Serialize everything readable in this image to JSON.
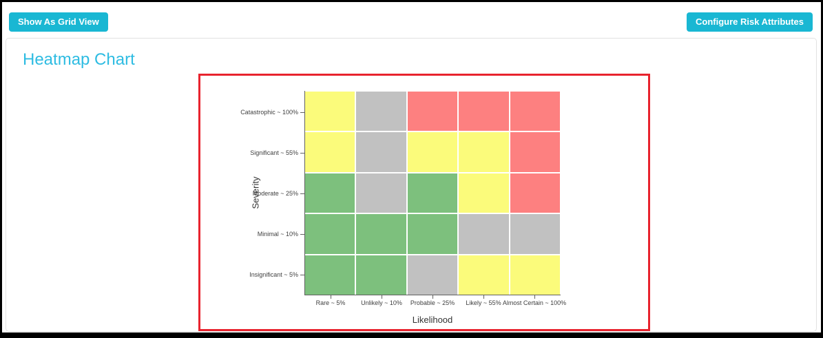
{
  "toolbar": {
    "grid_view_label": "Show As Grid View",
    "configure_label": "Configure Risk Attributes"
  },
  "panel": {
    "title": "Heatmap Chart"
  },
  "colors": {
    "accent_cyan": "#19b7d3",
    "title_cyan": "#2ebce2",
    "chart_frame_red": "#e8232e",
    "cell_green": "#7dc07d",
    "cell_yellow": "#fbfb7b",
    "cell_red": "#fd8080",
    "cell_gray": "#c1c1c1"
  },
  "chart_data": {
    "type": "heatmap",
    "x_axis_label": "Likelihood",
    "y_axis_label": "Severity",
    "x_categories": [
      "Rare ~ 5%",
      "Unlikely ~ 10%",
      "Probable ~ 25%",
      "Likely ~ 55%",
      "Almost Certain ~ 100%"
    ],
    "y_categories": [
      "Catastrophic ~ 100%",
      "Significant ~ 55%",
      "Moderate ~ 25%",
      "Minimal ~ 10%",
      "Insignificant ~ 5%"
    ],
    "palette": {
      "green": "#7dc07d",
      "yellow": "#fbfb7b",
      "red": "#fd8080",
      "gray": "#c1c1c1"
    },
    "cells": [
      [
        "yellow",
        "gray",
        "red",
        "red",
        "red"
      ],
      [
        "yellow",
        "gray",
        "yellow",
        "yellow",
        "red"
      ],
      [
        "green",
        "gray",
        "green",
        "yellow",
        "red"
      ],
      [
        "green",
        "green",
        "green",
        "gray",
        "gray"
      ],
      [
        "green",
        "green",
        "gray",
        "yellow",
        "yellow"
      ]
    ],
    "legend": "none",
    "grid": "white-gaps"
  }
}
